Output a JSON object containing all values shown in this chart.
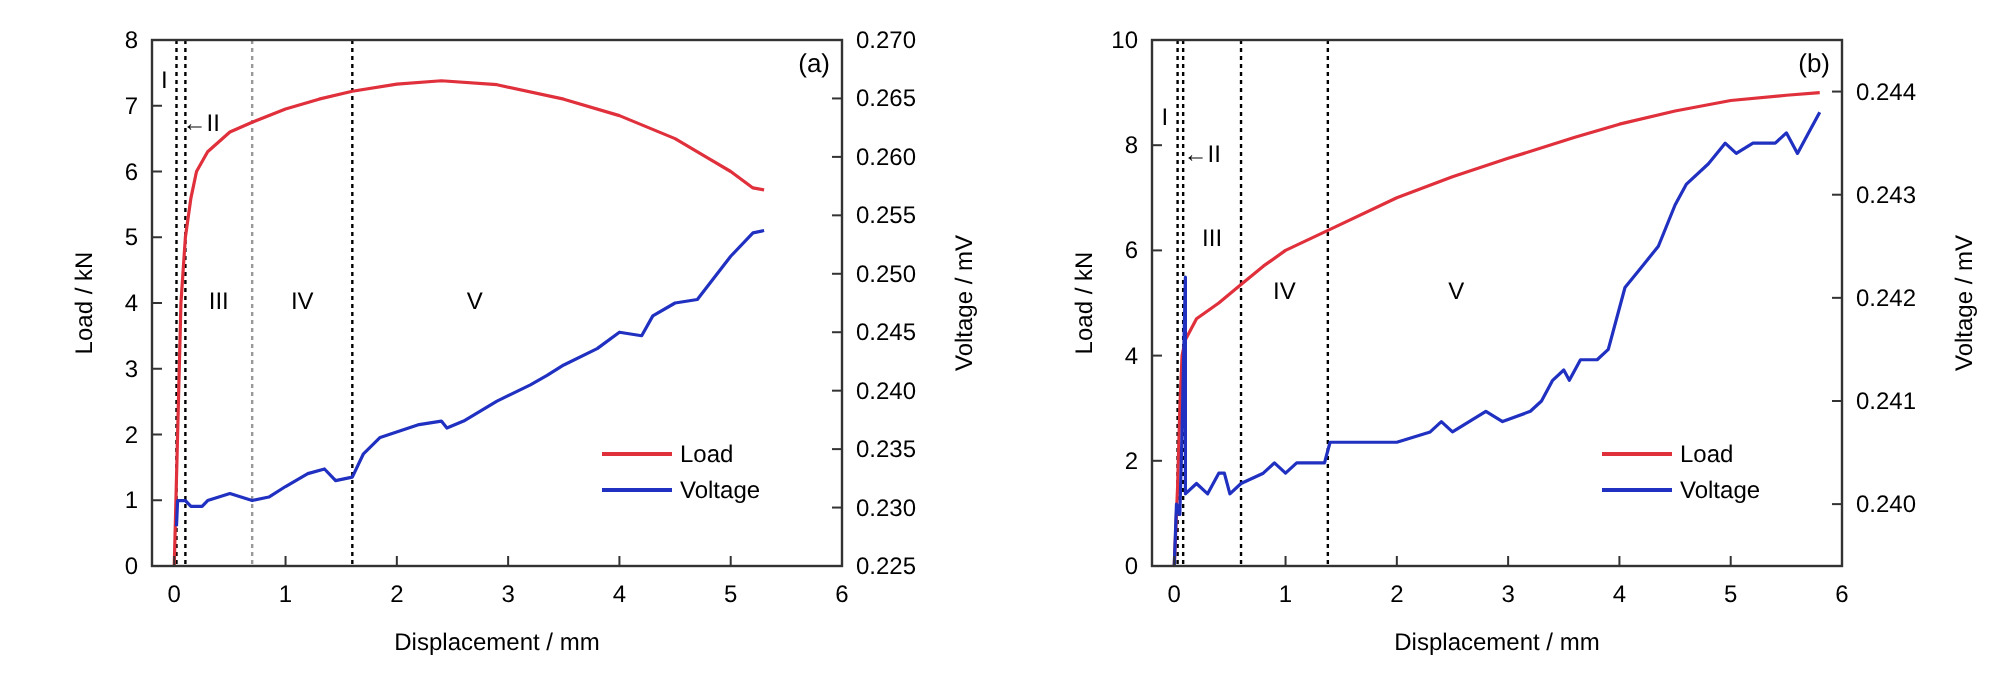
{
  "chart_data": [
    {
      "type": "line",
      "xlabel": "Displacement / mm",
      "ylabel": "Load / kN",
      "y2label": "Voltage / mV",
      "xlim": [
        -0.2,
        6
      ],
      "xticks": [
        0,
        1,
        2,
        3,
        4,
        5,
        6
      ],
      "ylim": [
        0,
        8
      ],
      "yticks": [
        0,
        1,
        2,
        3,
        4,
        5,
        6,
        7,
        8
      ],
      "y2lim": [
        0.225,
        0.27
      ],
      "y2ticks": [
        0.225,
        {
          "value": 0.23,
          "label": "0.230"
        },
        0.235,
        {
          "value": 0.24,
          "label": "0.240"
        },
        0.245,
        {
          "value": 0.25,
          "label": "0.250"
        },
        0.255,
        {
          "value": 0.26,
          "label": "0.260"
        },
        0.265,
        {
          "value": 0.27,
          "label": "0.270"
        }
      ],
      "legend": "bottom right",
      "line_style": "solid",
      "grid": false,
      "series": [
        {
          "name": "Load",
          "color": "#e0303c",
          "x": [
            0,
            0.03,
            0.06,
            0.1,
            0.15,
            0.2,
            0.3,
            0.5,
            0.7,
            1.0,
            1.3,
            1.6,
            2.0,
            2.4,
            2.9,
            3.5,
            4.0,
            4.5,
            4.8,
            5.0,
            5.2,
            5.3
          ],
          "values": [
            0,
            2,
            4,
            5,
            5.6,
            6,
            6.3,
            6.6,
            6.75,
            6.95,
            7.1,
            7.22,
            7.33,
            7.38,
            7.32,
            7.1,
            6.85,
            6.5,
            6.2,
            6.0,
            5.75,
            5.72
          ]
        },
        {
          "name": "Voltage",
          "color": "#2030c0",
          "axis": "y2",
          "x": [
            0.02,
            0.03,
            0.1,
            0.15,
            0.25,
            0.3,
            0.5,
            0.6,
            0.7,
            0.85,
            1.0,
            1.2,
            1.35,
            1.45,
            1.6,
            1.7,
            1.85,
            2.2,
            2.4,
            2.45,
            2.6,
            2.9,
            3.2,
            3.35,
            3.5,
            3.8,
            4.0,
            4.2,
            4.3,
            4.5,
            4.7,
            5.0,
            5.2,
            5.3
          ],
          "values": [
            0.2284,
            0.2306,
            0.2306,
            0.2301,
            0.2301,
            0.2306,
            0.2312,
            0.2309,
            0.2306,
            0.2309,
            0.2318,
            0.2329,
            0.2333,
            0.2323,
            0.2326,
            0.2346,
            0.236,
            0.2371,
            0.2374,
            0.2368,
            0.2374,
            0.2391,
            0.2405,
            0.2413,
            0.2422,
            0.2436,
            0.245,
            0.2447,
            0.2464,
            0.2475,
            0.2478,
            0.2515,
            0.2535,
            0.2537
          ]
        }
      ],
      "ref_lines": [
        {
          "axis": "x",
          "value": 0.02,
          "color": "#000000",
          "line_style": "dotted"
        },
        {
          "axis": "x",
          "value": 0.1,
          "color": "#000000",
          "line_style": "dotted"
        },
        {
          "axis": "x",
          "value": 0.7,
          "color": "#999999",
          "line_style": "dotted"
        },
        {
          "axis": "x",
          "value": 1.6,
          "color": "#000000",
          "line_style": "dotted"
        }
      ],
      "annotations": [
        "(a)",
        "I",
        "←II",
        "III",
        "IV",
        "V"
      ]
    },
    {
      "type": "line",
      "xlabel": "Displacement / mm",
      "ylabel": "Load / kN",
      "y2label": "Voltage / mV",
      "xlim": [
        -0.2,
        6
      ],
      "xticks": [
        0,
        1,
        2,
        3,
        4,
        5,
        6
      ],
      "ylim": [
        0,
        10
      ],
      "yticks": [
        0,
        2,
        4,
        6,
        8,
        10
      ],
      "y2lim": [
        0.2394,
        0.2445
      ],
      "y2ticks": [
        {
          "value": 0.24,
          "label": "0.240"
        },
        0.241,
        0.242,
        0.243,
        0.244
      ],
      "legend": "bottom right",
      "line_style": "solid",
      "grid": false,
      "series": [
        {
          "name": "Load",
          "color": "#e0303c",
          "x": [
            0,
            0.03,
            0.05,
            0.07,
            0.1,
            0.2,
            0.4,
            0.6,
            0.8,
            1.0,
            1.4,
            2.0,
            2.5,
            3.0,
            3.6,
            4.0,
            4.5,
            5.0,
            5.5,
            5.8
          ],
          "values": [
            0,
            1.5,
            3,
            4,
            4.3,
            4.7,
            5.0,
            5.35,
            5.7,
            6.0,
            6.4,
            7.0,
            7.4,
            7.75,
            8.15,
            8.4,
            8.65,
            8.85,
            8.95,
            9.0
          ]
        },
        {
          "name": "Voltage",
          "color": "#2030c0",
          "axis": "y2",
          "x": [
            0,
            0.02,
            0.05,
            0.07,
            0.1,
            0.1,
            0.2,
            0.3,
            0.4,
            0.45,
            0.5,
            0.6,
            0.8,
            0.9,
            1.0,
            1.1,
            1.35,
            1.4,
            1.6,
            2.0,
            2.3,
            2.4,
            2.5,
            2.8,
            2.95,
            3.2,
            3.3,
            3.4,
            3.5,
            3.55,
            3.65,
            3.8,
            3.9,
            4.05,
            4.2,
            4.35,
            4.5,
            4.6,
            4.8,
            4.95,
            5.05,
            5.2,
            5.4,
            5.5,
            5.6,
            5.7,
            5.8
          ],
          "values": [
            0.2394,
            0.24,
            0.2399,
            0.2407,
            0.2422,
            0.2401,
            0.2402,
            0.2401,
            0.2403,
            0.2403,
            0.2401,
            0.2402,
            0.2403,
            0.2404,
            0.2403,
            0.2404,
            0.2404,
            0.2406,
            0.2406,
            0.2406,
            0.2407,
            0.2408,
            0.2407,
            0.2409,
            0.2408,
            0.2409,
            0.241,
            0.2412,
            0.2413,
            0.2412,
            0.2414,
            0.2414,
            0.2415,
            0.2421,
            0.2423,
            0.2425,
            0.2429,
            0.2431,
            0.2433,
            0.2435,
            0.2434,
            0.2435,
            0.2435,
            0.2436,
            0.2434,
            0.2436,
            0.2438
          ]
        }
      ],
      "ref_lines": [
        {
          "axis": "x",
          "value": 0.03,
          "color": "#000000",
          "line_style": "dotted"
        },
        {
          "axis": "x",
          "value": 0.08,
          "color": "#000000",
          "line_style": "dotted"
        },
        {
          "axis": "x",
          "value": 0.6,
          "color": "#000000",
          "line_style": "dotted"
        },
        {
          "axis": "x",
          "value": 1.38,
          "color": "#000000",
          "line_style": "dotted"
        }
      ],
      "annotations": [
        "(b)",
        "I",
        "←II",
        "III",
        "IV",
        "V"
      ]
    }
  ]
}
